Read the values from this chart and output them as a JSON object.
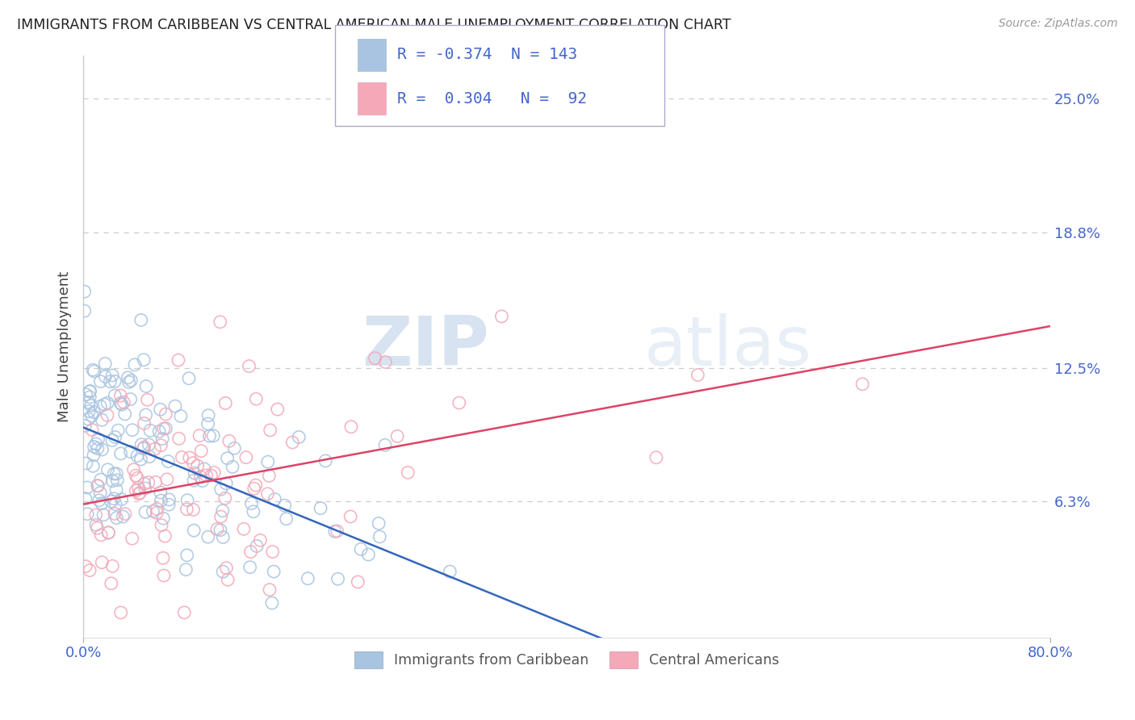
{
  "title": "IMMIGRANTS FROM CARIBBEAN VS CENTRAL AMERICAN MALE UNEMPLOYMENT CORRELATION CHART",
  "source": "Source: ZipAtlas.com",
  "ylabel": "Male Unemployment",
  "xlim": [
    0.0,
    0.8
  ],
  "ylim": [
    0.0,
    0.27
  ],
  "ytick_vals": [
    0.063,
    0.125,
    0.188,
    0.25
  ],
  "ytick_labels": [
    "6.3%",
    "12.5%",
    "18.8%",
    "25.0%"
  ],
  "xtick_vals": [
    0.0,
    0.8
  ],
  "xtick_labels": [
    "0.0%",
    "80.0%"
  ],
  "grid_yticks": [
    0.063,
    0.125,
    0.188,
    0.25
  ],
  "series1_color": "#a8c4e0",
  "series2_color": "#f4a8b8",
  "line1_color": "#3366bb",
  "line2_color": "#dd4466",
  "watermark_zip": "ZIP",
  "watermark_atlas": "atlas",
  "legend_R1": "-0.374",
  "legend_N1": "143",
  "legend_R2": "0.304",
  "legend_N2": "92",
  "background_color": "#ffffff",
  "grid_color": "#cccccc",
  "title_color": "#222222",
  "ylabel_color": "#444444",
  "tick_label_color": "#4466cc",
  "series1_name": "Immigrants from Caribbean",
  "series2_name": "Central Americans",
  "n1": 143,
  "n2": 92,
  "R1": -0.374,
  "R2": 0.304,
  "seed1": 42,
  "seed2": 123
}
